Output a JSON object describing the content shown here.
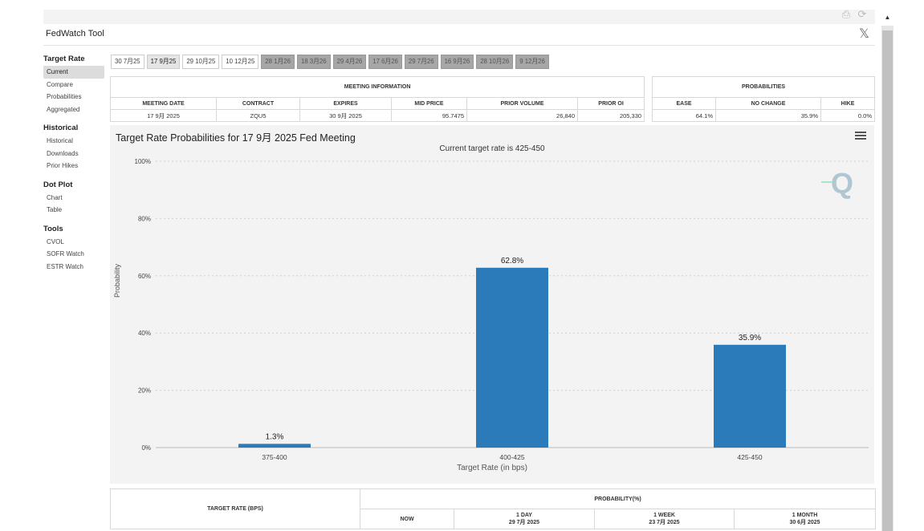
{
  "app": {
    "title": "FedWatch Tool"
  },
  "sidebar": {
    "sections": [
      {
        "heading": "Target Rate",
        "items": [
          "Current",
          "Compare",
          "Probabilities",
          "Aggregated"
        ],
        "active": "Current"
      },
      {
        "heading": "Historical",
        "items": [
          "Historical",
          "Downloads",
          "Prior Hikes"
        ]
      },
      {
        "heading": "Dot Plot",
        "items": [
          "Chart",
          "Table"
        ]
      },
      {
        "heading": "Tools",
        "items": [
          "CVOL",
          "SOFR Watch",
          "ESTR Watch"
        ]
      }
    ]
  },
  "meeting_tabs": [
    {
      "label": "30 7月25",
      "state": "normal"
    },
    {
      "label": "17 9月25",
      "state": "selected"
    },
    {
      "label": "29 10月25",
      "state": "normal"
    },
    {
      "label": "10 12月25",
      "state": "normal"
    },
    {
      "label": "28 1月26",
      "state": "future"
    },
    {
      "label": "18 3月26",
      "state": "future"
    },
    {
      "label": "29 4月26",
      "state": "future"
    },
    {
      "label": "17 6月26",
      "state": "future"
    },
    {
      "label": "29 7月26",
      "state": "future"
    },
    {
      "label": "16 9月26",
      "state": "future"
    },
    {
      "label": "28 10月26",
      "state": "future"
    },
    {
      "label": "9 12月26",
      "state": "future"
    }
  ],
  "meeting_info": {
    "caption": "MEETING INFORMATION",
    "headers": [
      "MEETING DATE",
      "CONTRACT",
      "EXPIRES",
      "MID PRICE",
      "PRIOR VOLUME",
      "PRIOR OI"
    ],
    "row": [
      "17 9月 2025",
      "ZQU5",
      "30 9月 2025",
      "95.7475",
      "26,840",
      "205,330"
    ]
  },
  "probabilities": {
    "caption": "PROBABILITIES",
    "headers": [
      "EASE",
      "NO CHANGE",
      "HIKE"
    ],
    "row": [
      "64.1%",
      "35.9%",
      "0.0%"
    ]
  },
  "chart_data": {
    "type": "bar",
    "title": "Target Rate Probabilities for 17 9月 2025 Fed Meeting",
    "subtitle": "Current target rate is 425-450",
    "xlabel": "Target Rate (in bps)",
    "ylabel": "Probability",
    "categories": [
      "375-400",
      "400-425",
      "425-450"
    ],
    "values": [
      1.3,
      62.8,
      35.9
    ],
    "data_labels": [
      "1.3%",
      "62.8%",
      "35.9%"
    ],
    "ylim": [
      0,
      100
    ],
    "yticks": [
      "0%",
      "20%",
      "40%",
      "60%",
      "80%",
      "100%"
    ],
    "grid": true,
    "bar_color": "#2b7bba"
  },
  "bottom_table": {
    "target_rate_header": "TARGET RATE (BPS)",
    "probability_header": "PROBABILITY(%)",
    "columns": [
      {
        "label": "NOW",
        "sub": ""
      },
      {
        "label": "1 DAY",
        "sub": "29 7月 2025"
      },
      {
        "label": "1 WEEK",
        "sub": "23 7月 2025"
      },
      {
        "label": "1 MONTH",
        "sub": "30 6月 2025"
      }
    ]
  },
  "icons": [
    "print-icon",
    "refresh-icon",
    "x-logo-icon",
    "menu-icon",
    "q-logo-icon",
    "scroll-up-icon"
  ]
}
